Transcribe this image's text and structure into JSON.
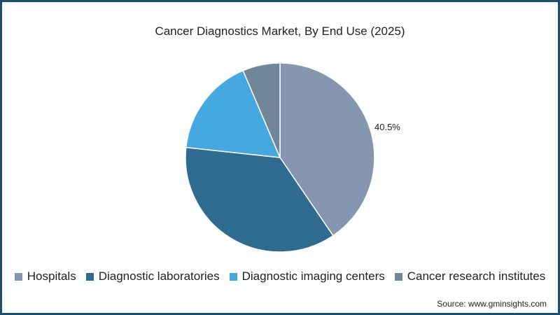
{
  "title": "Cancer Diagnostics Market, By End Use (2025)",
  "source": "Source: www.gminsights.com",
  "border_color": "#1b4e6b",
  "chart_data": {
    "type": "pie",
    "title": "Cancer Diagnostics Market, By End Use (2025)",
    "categories": [
      "Hospitals",
      "Diagnostic laboratories",
      "Diagnostic imaging centers",
      "Cancer research institutes"
    ],
    "values": [
      40.5,
      36.2,
      16.9,
      6.4
    ],
    "colors": [
      "#8496b0",
      "#2e6b8e",
      "#45a9e0",
      "#72869a"
    ],
    "data_labels": [
      "40.5%",
      "",
      "",
      ""
    ],
    "legend_position": "bottom",
    "unit": "%"
  },
  "legend": [
    {
      "label": "Hospitals",
      "color": "#8496b0"
    },
    {
      "label": "Diagnostic laboratories",
      "color": "#2e6b8e"
    },
    {
      "label": "Diagnostic imaging centers",
      "color": "#45a9e0"
    },
    {
      "label": "Cancer research institutes",
      "color": "#72869a"
    }
  ]
}
